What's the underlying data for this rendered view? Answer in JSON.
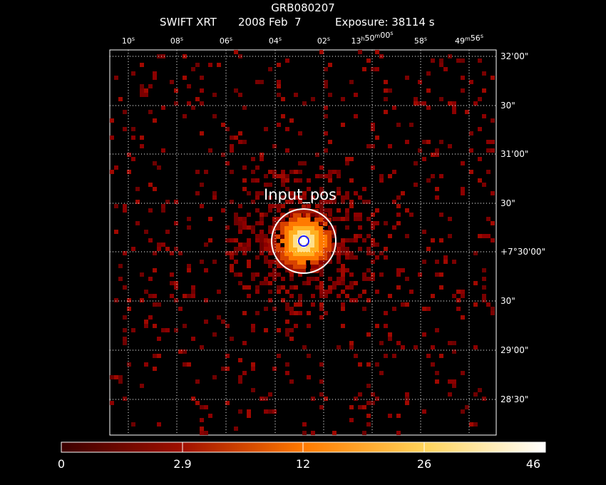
{
  "header": {
    "object": "GRB080207",
    "instrument": "SWIFT XRT",
    "date": "2008 Feb  7",
    "exposure": "Exposure: 38114 s"
  },
  "ra_axis": {
    "ticks": [
      {
        "main": "10",
        "sup": "s"
      },
      {
        "main": "08",
        "sup": "s"
      },
      {
        "main": "06",
        "sup": "s"
      },
      {
        "main": "04",
        "sup": "s"
      },
      {
        "main": "02",
        "sup": "s"
      },
      {
        "main": "13",
        "sup": "h",
        "main2": "50",
        "sup2": "m",
        "main3": "00",
        "sup3": "s"
      },
      {
        "main": "58",
        "sup": "s"
      },
      {
        "main": "49",
        "sup": "m",
        "main2": "56",
        "sup2": "s"
      }
    ]
  },
  "dec_axis": {
    "ticks": [
      "32'00\"",
      "30\"",
      "31'00\"",
      "30\"",
      "+7°30'00\"",
      "30\"",
      "29'00\"",
      "28'30\""
    ]
  },
  "source": {
    "label": "Input_pos"
  },
  "colorbar": {
    "ticks": [
      "0",
      "2.9",
      "12",
      "26",
      "46"
    ]
  },
  "colors": {
    "background": "#000000",
    "grid": "#ffffff",
    "low": "#8c0000",
    "mid": "#ff8c00",
    "high": "#ffffff",
    "marker_inner": "#1a1aff"
  }
}
